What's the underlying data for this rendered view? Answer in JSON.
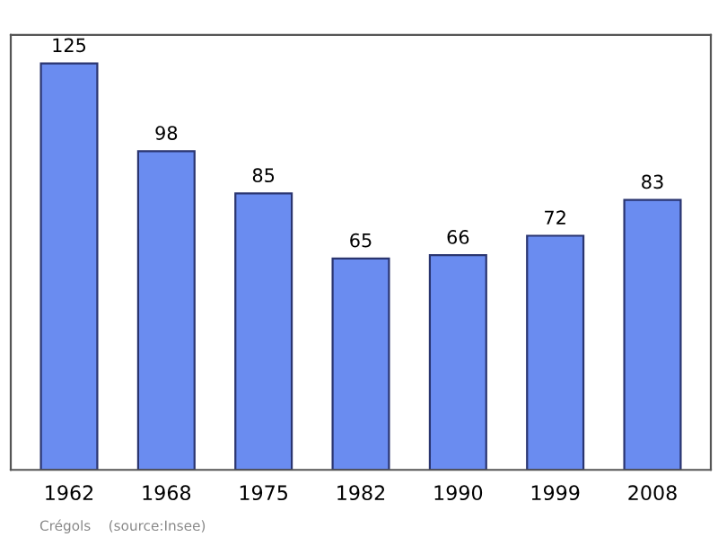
{
  "chart_data": {
    "type": "bar",
    "categories": [
      "1962",
      "1968",
      "1975",
      "1982",
      "1990",
      "1999",
      "2008"
    ],
    "values": [
      125,
      98,
      85,
      65,
      66,
      72,
      83
    ],
    "color": "#6a8cf0",
    "data_labels": true,
    "annotations": [
      "Crégols    (source:Insee)"
    ]
  }
}
